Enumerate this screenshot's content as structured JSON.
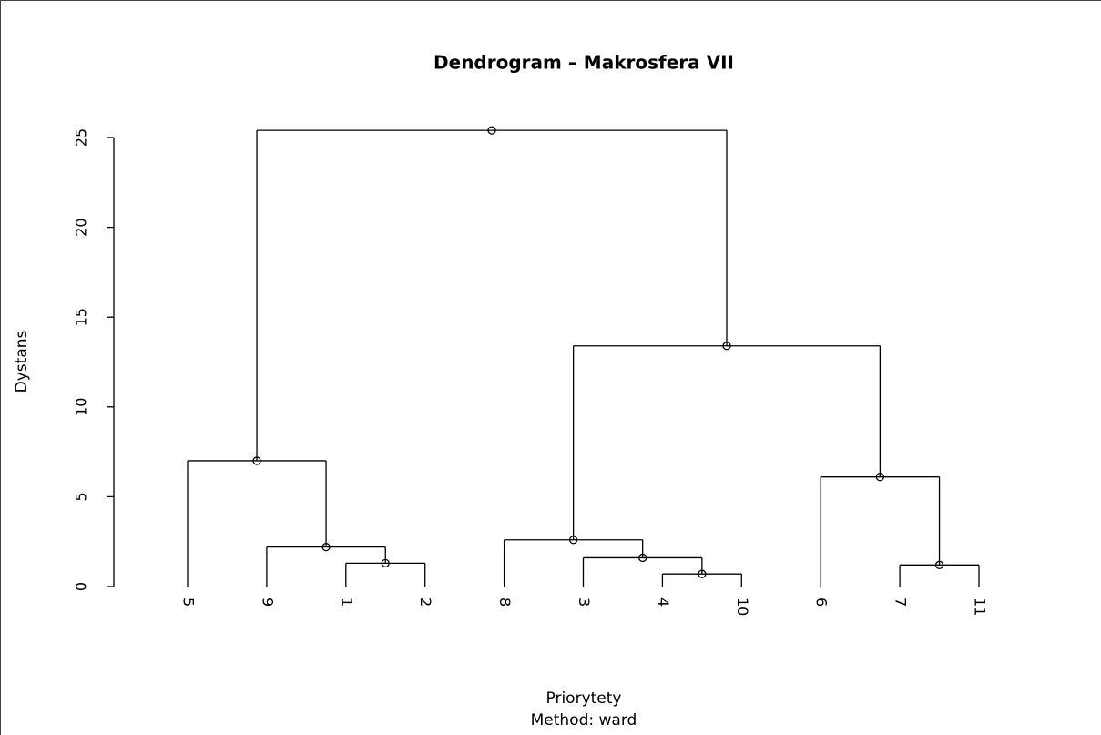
{
  "chart_data": {
    "type": "dendrogram",
    "title": "Dendrogram – Makrosfera VII",
    "y_label": "Dystans",
    "x_label": "Priorytety",
    "subtitle": "Method: ward",
    "ylim": [
      0,
      25
    ],
    "yticks": [
      0,
      5,
      10,
      15,
      20,
      25
    ],
    "color": "#000000",
    "tree": {
      "height": 25.4,
      "children": [
        {
          "height": 7.0,
          "children": [
            {
              "label": "5"
            },
            {
              "height": 2.2,
              "children": [
                {
                  "label": "9"
                },
                {
                  "height": 1.3,
                  "children": [
                    {
                      "label": "1"
                    },
                    {
                      "label": "2"
                    }
                  ]
                }
              ]
            }
          ]
        },
        {
          "height": 13.4,
          "children": [
            {
              "height": 2.6,
              "children": [
                {
                  "label": "8"
                },
                {
                  "height": 1.6,
                  "children": [
                    {
                      "label": "3"
                    },
                    {
                      "height": 0.7,
                      "children": [
                        {
                          "label": "4"
                        },
                        {
                          "label": "10"
                        }
                      ]
                    }
                  ]
                }
              ]
            },
            {
              "height": 6.1,
              "children": [
                {
                  "label": "6"
                },
                {
                  "height": 1.2,
                  "children": [
                    {
                      "label": "7"
                    },
                    {
                      "label": "11"
                    }
                  ]
                }
              ]
            }
          ]
        }
      ]
    }
  }
}
